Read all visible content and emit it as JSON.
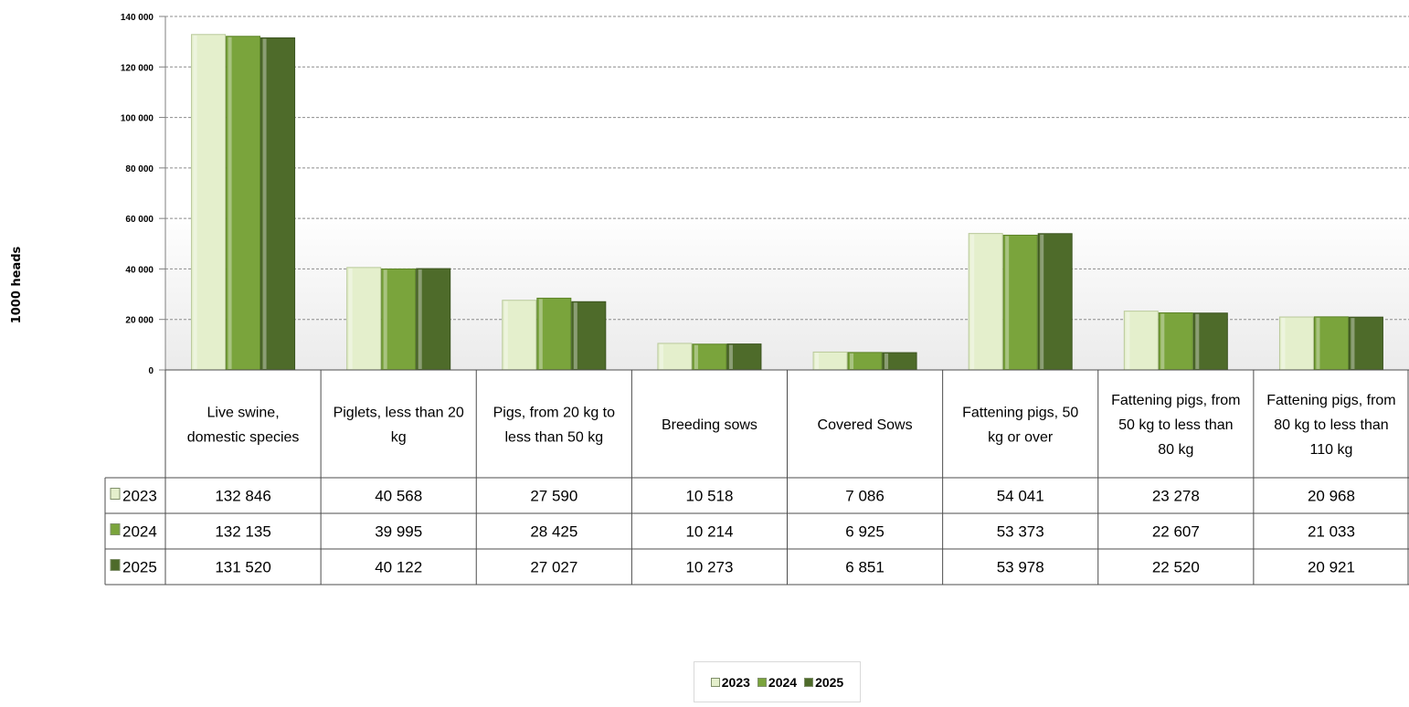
{
  "chart_data": {
    "type": "bar",
    "ylabel": "1000 heads",
    "ylim": [
      0,
      140000
    ],
    "yticks": [
      {
        "value": 0,
        "label": "0"
      },
      {
        "value": 20000,
        "label": "20 000"
      },
      {
        "value": 40000,
        "label": "40 000"
      },
      {
        "value": 60000,
        "label": "60 000"
      },
      {
        "value": 80000,
        "label": "80 000"
      },
      {
        "value": 100000,
        "label": "100 000"
      },
      {
        "value": 120000,
        "label": "120 000"
      },
      {
        "value": 140000,
        "label": "140 000"
      }
    ],
    "grid": true,
    "legend_position": "bottom",
    "categories": [
      [
        "Live swine,",
        "domestic species"
      ],
      [
        "Piglets, less than 20",
        "kg"
      ],
      [
        "Pigs, from 20 kg to",
        "less than 50 kg"
      ],
      [
        "Breeding sows"
      ],
      [
        "Covered Sows"
      ],
      [
        "Fattening pigs, 50",
        "kg or over"
      ],
      [
        "Fattening pigs, from",
        "50 kg to less than",
        "80 kg"
      ],
      [
        "Fattening pigs, from",
        "80 kg to less than",
        "110 kg"
      ]
    ],
    "series": [
      {
        "name": "2023",
        "color": "#e4efcc",
        "values": [
          132846,
          40568,
          27590,
          10518,
          7086,
          54041,
          23278,
          20968
        ],
        "labels": [
          "132 846",
          "40 568",
          "27 590",
          "10 518",
          "7 086",
          "54 041",
          "23 278",
          "20 968"
        ]
      },
      {
        "name": "2024",
        "color": "#7aa43c",
        "values": [
          132135,
          39995,
          28425,
          10214,
          6925,
          53373,
          22607,
          21033
        ],
        "labels": [
          "132 135",
          "39 995",
          "28 425",
          "10 214",
          "6 925",
          "53 373",
          "22 607",
          "21 033"
        ]
      },
      {
        "name": "2025",
        "color": "#4e6b2a",
        "values": [
          131520,
          40122,
          27027,
          10273,
          6851,
          53978,
          22520,
          20921
        ],
        "labels": [
          "131 520",
          "40 122",
          "27 027",
          "10 273",
          "6 851",
          "53 978",
          "22 520",
          "20 921"
        ]
      }
    ]
  },
  "legend": {
    "items": [
      {
        "label": "2023",
        "color": "#e4efcc"
      },
      {
        "label": "2024",
        "color": "#7aa43c"
      },
      {
        "label": "2025",
        "color": "#4e6b2a"
      }
    ]
  }
}
